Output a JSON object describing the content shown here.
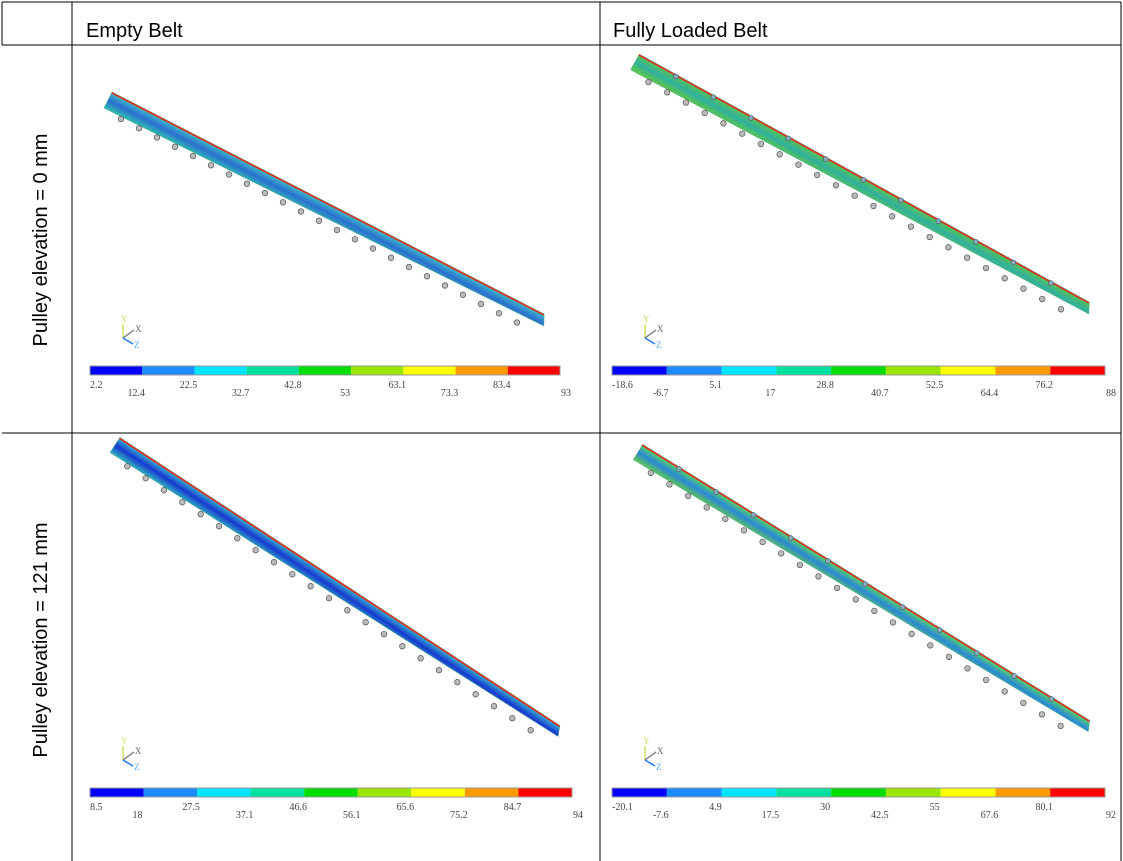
{
  "header": {
    "columns": [
      "Empty Belt",
      "Fully Loaded Belt"
    ]
  },
  "triad_labels": {
    "y": "Y",
    "x": "X",
    "z": "Z"
  },
  "rows": [
    {
      "label": "Pulley elevation = 0 mm",
      "cells": [
        {
          "legend": [
            "2.2",
            "12.4",
            "22.5",
            "32.7",
            "42.8",
            "53",
            "63.1",
            "73.3",
            "83.4",
            "93"
          ]
        },
        {
          "legend": [
            "-18.6",
            "-6.7",
            "5.1",
            "17",
            "28.8",
            "40.7",
            "52.5",
            "64.4",
            "76.2",
            "88"
          ]
        }
      ]
    },
    {
      "label": "Pulley elevation = 121 mm",
      "cells": [
        {
          "legend": [
            "8.5",
            "18",
            "27.5",
            "37.1",
            "46.6",
            "56.1",
            "65.6",
            "75.2",
            "84.7",
            "94"
          ]
        },
        {
          "legend": [
            "-20.1",
            "-7.6",
            "4.9",
            "17.5",
            "30",
            "42.5",
            "55",
            "67.6",
            "80.1",
            "92"
          ]
        }
      ]
    }
  ]
}
